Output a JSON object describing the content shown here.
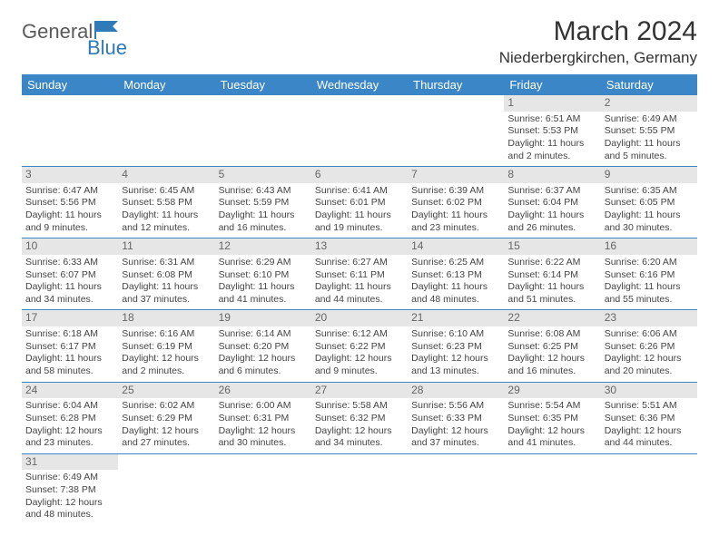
{
  "logo": {
    "main": "General",
    "sub": "Blue"
  },
  "title": "March 2024",
  "location": "Niederbergkirchen, Germany",
  "colors": {
    "header_bg": "#3b86c6",
    "header_fg": "#ffffff",
    "daynum_bg": "#e6e6e6",
    "border": "#3b86c6",
    "logo_gray": "#5a5a5a",
    "logo_blue": "#2f7ab8"
  },
  "weekdays": [
    "Sunday",
    "Monday",
    "Tuesday",
    "Wednesday",
    "Thursday",
    "Friday",
    "Saturday"
  ],
  "cells": [
    [
      null,
      null,
      null,
      null,
      null,
      {
        "d": "1",
        "sr": "6:51 AM",
        "ss": "5:53 PM",
        "dl": "11 hours and 2 minutes."
      },
      {
        "d": "2",
        "sr": "6:49 AM",
        "ss": "5:55 PM",
        "dl": "11 hours and 5 minutes."
      }
    ],
    [
      {
        "d": "3",
        "sr": "6:47 AM",
        "ss": "5:56 PM",
        "dl": "11 hours and 9 minutes."
      },
      {
        "d": "4",
        "sr": "6:45 AM",
        "ss": "5:58 PM",
        "dl": "11 hours and 12 minutes."
      },
      {
        "d": "5",
        "sr": "6:43 AM",
        "ss": "5:59 PM",
        "dl": "11 hours and 16 minutes."
      },
      {
        "d": "6",
        "sr": "6:41 AM",
        "ss": "6:01 PM",
        "dl": "11 hours and 19 minutes."
      },
      {
        "d": "7",
        "sr": "6:39 AM",
        "ss": "6:02 PM",
        "dl": "11 hours and 23 minutes."
      },
      {
        "d": "8",
        "sr": "6:37 AM",
        "ss": "6:04 PM",
        "dl": "11 hours and 26 minutes."
      },
      {
        "d": "9",
        "sr": "6:35 AM",
        "ss": "6:05 PM",
        "dl": "11 hours and 30 minutes."
      }
    ],
    [
      {
        "d": "10",
        "sr": "6:33 AM",
        "ss": "6:07 PM",
        "dl": "11 hours and 34 minutes."
      },
      {
        "d": "11",
        "sr": "6:31 AM",
        "ss": "6:08 PM",
        "dl": "11 hours and 37 minutes."
      },
      {
        "d": "12",
        "sr": "6:29 AM",
        "ss": "6:10 PM",
        "dl": "11 hours and 41 minutes."
      },
      {
        "d": "13",
        "sr": "6:27 AM",
        "ss": "6:11 PM",
        "dl": "11 hours and 44 minutes."
      },
      {
        "d": "14",
        "sr": "6:25 AM",
        "ss": "6:13 PM",
        "dl": "11 hours and 48 minutes."
      },
      {
        "d": "15",
        "sr": "6:22 AM",
        "ss": "6:14 PM",
        "dl": "11 hours and 51 minutes."
      },
      {
        "d": "16",
        "sr": "6:20 AM",
        "ss": "6:16 PM",
        "dl": "11 hours and 55 minutes."
      }
    ],
    [
      {
        "d": "17",
        "sr": "6:18 AM",
        "ss": "6:17 PM",
        "dl": "11 hours and 58 minutes."
      },
      {
        "d": "18",
        "sr": "6:16 AM",
        "ss": "6:19 PM",
        "dl": "12 hours and 2 minutes."
      },
      {
        "d": "19",
        "sr": "6:14 AM",
        "ss": "6:20 PM",
        "dl": "12 hours and 6 minutes."
      },
      {
        "d": "20",
        "sr": "6:12 AM",
        "ss": "6:22 PM",
        "dl": "12 hours and 9 minutes."
      },
      {
        "d": "21",
        "sr": "6:10 AM",
        "ss": "6:23 PM",
        "dl": "12 hours and 13 minutes."
      },
      {
        "d": "22",
        "sr": "6:08 AM",
        "ss": "6:25 PM",
        "dl": "12 hours and 16 minutes."
      },
      {
        "d": "23",
        "sr": "6:06 AM",
        "ss": "6:26 PM",
        "dl": "12 hours and 20 minutes."
      }
    ],
    [
      {
        "d": "24",
        "sr": "6:04 AM",
        "ss": "6:28 PM",
        "dl": "12 hours and 23 minutes."
      },
      {
        "d": "25",
        "sr": "6:02 AM",
        "ss": "6:29 PM",
        "dl": "12 hours and 27 minutes."
      },
      {
        "d": "26",
        "sr": "6:00 AM",
        "ss": "6:31 PM",
        "dl": "12 hours and 30 minutes."
      },
      {
        "d": "27",
        "sr": "5:58 AM",
        "ss": "6:32 PM",
        "dl": "12 hours and 34 minutes."
      },
      {
        "d": "28",
        "sr": "5:56 AM",
        "ss": "6:33 PM",
        "dl": "12 hours and 37 minutes."
      },
      {
        "d": "29",
        "sr": "5:54 AM",
        "ss": "6:35 PM",
        "dl": "12 hours and 41 minutes."
      },
      {
        "d": "30",
        "sr": "5:51 AM",
        "ss": "6:36 PM",
        "dl": "12 hours and 44 minutes."
      }
    ],
    [
      {
        "d": "31",
        "sr": "6:49 AM",
        "ss": "7:38 PM",
        "dl": "12 hours and 48 minutes."
      },
      null,
      null,
      null,
      null,
      null,
      null
    ]
  ],
  "labels": {
    "sunrise": "Sunrise:",
    "sunset": "Sunset:",
    "daylight": "Daylight:"
  }
}
